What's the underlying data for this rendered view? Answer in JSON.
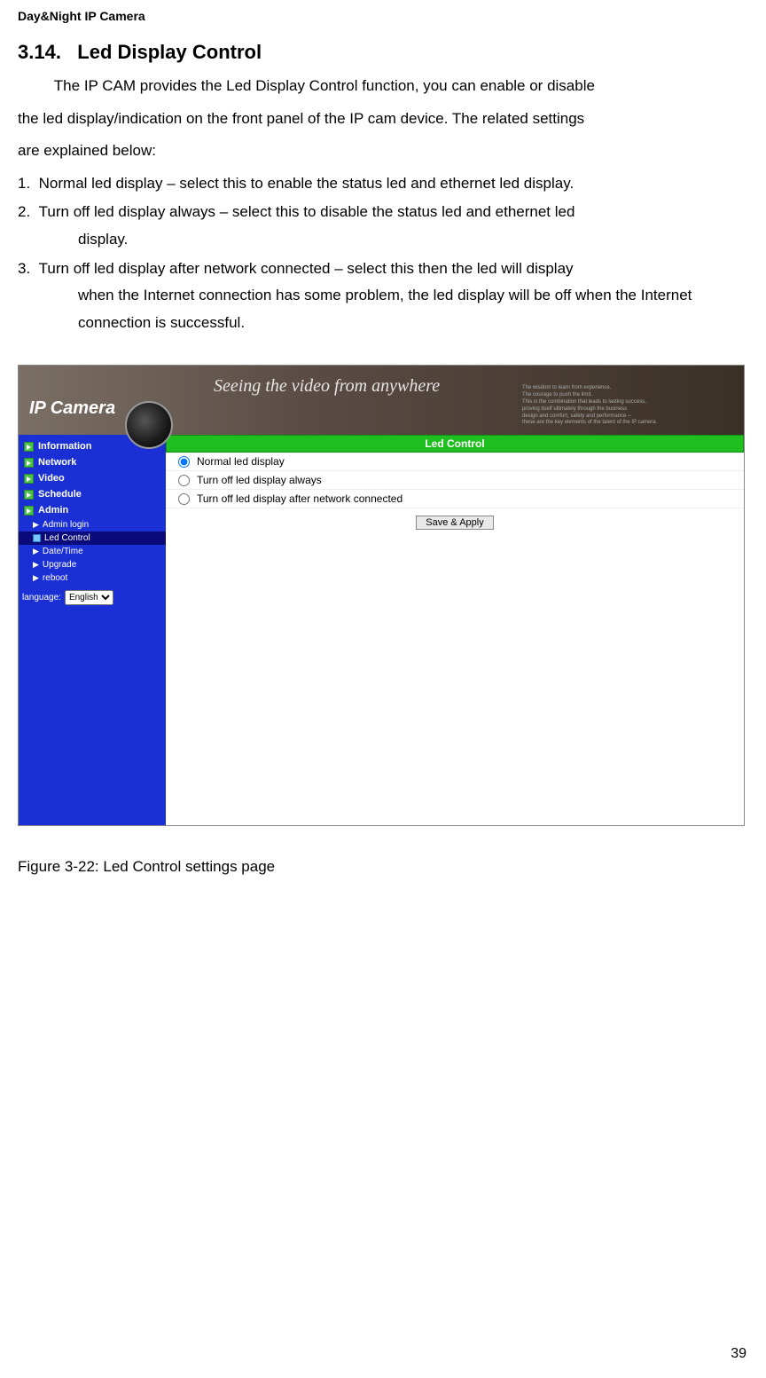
{
  "header": "Day&Night IP Camera",
  "section": {
    "number": "3.14.",
    "title": "Led Display Control"
  },
  "intro_line1": "The IP CAM provides the Led Display Control function, you can enable or disable",
  "intro_line2": "the led display/indication on the front panel of the IP cam device. The related settings",
  "intro_line3": "are explained below:",
  "items": [
    {
      "num": "1.",
      "first": "Normal led display – select this to enable the status led and ethernet led display."
    },
    {
      "num": "2.",
      "first": "Turn off led display always – select this to disable the status led and ethernet led",
      "rest": "display."
    },
    {
      "num": "3.",
      "first": "Turn off led display after network connected – select this then the led will display",
      "rest": "when the Internet connection has some problem, the led display will be off when the Internet connection is successful."
    }
  ],
  "screenshot": {
    "banner": {
      "logo": "IP Camera",
      "slogan": "Seeing the video from anywhere"
    },
    "sidebar": {
      "main": [
        "Information",
        "Network",
        "Video",
        "Schedule",
        "Admin"
      ],
      "sub": [
        "Admin login",
        "Led Control",
        "Date/Time",
        "Upgrade",
        "reboot"
      ],
      "selected_index": 1,
      "language_label": "language:",
      "language_value": "English"
    },
    "panel": {
      "title": "Led Control",
      "options": [
        "Normal led display",
        "Turn off led display always",
        "Turn off led display after network connected"
      ],
      "selected_option": 0,
      "button": "Save & Apply"
    }
  },
  "figure_caption": "Figure 3-22: Led Control settings page",
  "page_number": "39",
  "colors": {
    "sidebar_bg": "#1a2fd4",
    "panel_title_bg": "#1fbf1f",
    "banner_gradient_start": "#7a6f65",
    "banner_gradient_end": "#3a3026"
  }
}
